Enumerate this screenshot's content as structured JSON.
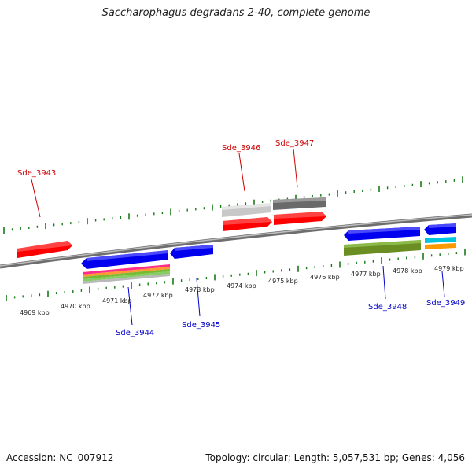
{
  "title": "Saccharophagus degradans 2-40, complete genome",
  "footer": {
    "accession": "Accession: NC_007912",
    "summary": "Topology: circular; Length: 5,057,531 bp; Genes: 4,056"
  },
  "colors": {
    "forward_label": "#cc0000",
    "reverse_label": "#0000cc",
    "forward_gene": "#ff0000",
    "reverse_gene": "#0000ee",
    "tick": "#1a7a1a",
    "backbone": "#808080"
  },
  "kbp_labels": [
    "4969 kbp",
    "4970 kbp",
    "4971 kbp",
    "4972 kbp",
    "4973 kbp",
    "4974 kbp",
    "4975 kbp",
    "4976 kbp",
    "4977 kbp",
    "4978 kbp",
    "4979 kbp"
  ],
  "gene_labels": {
    "forward": [
      "Sde_3943",
      "Sde_3946",
      "Sde_3947"
    ],
    "reverse": [
      "Sde_3944",
      "Sde_3945",
      "Sde_3948",
      "Sde_3949"
    ]
  }
}
